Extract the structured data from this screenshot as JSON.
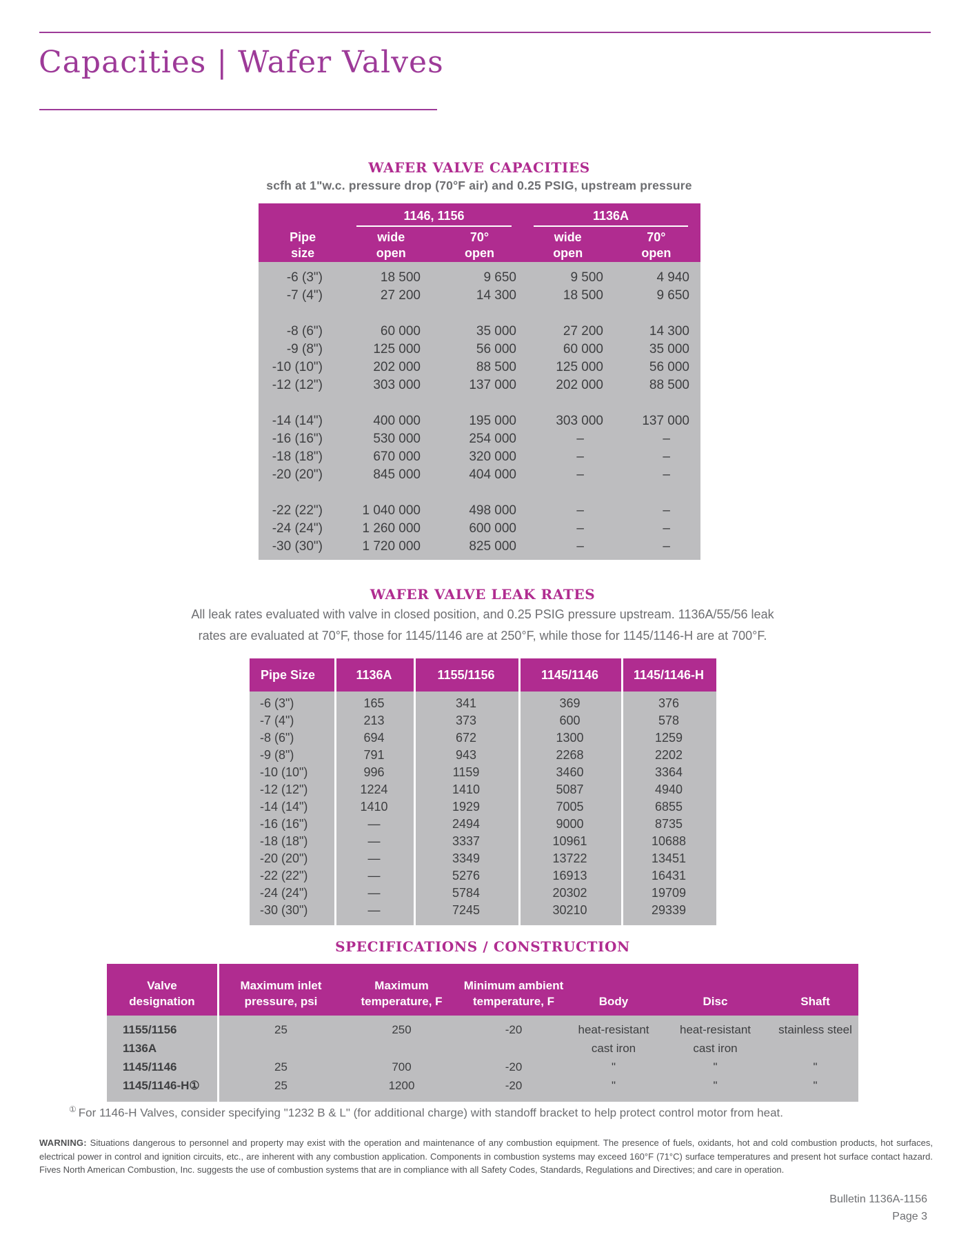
{
  "page": {
    "title": "Capacities | Wafer Valves",
    "footer_bulletin": "Bulletin 1136A-1156",
    "footer_page": "Page 3"
  },
  "colors": {
    "magenta": "#b02c90",
    "purple": "#9d3a98",
    "table_gray": "#bdbdbf"
  },
  "capacities": {
    "title": "WAFER VALVE CAPACITIES",
    "subtitle": "scfh at 1\"w.c. pressure drop (70°F air) and 0.25 PSIG, upstream pressure",
    "groups": [
      "1146, 1156",
      "1136A"
    ],
    "headers": [
      [
        "Pipe",
        "size"
      ],
      [
        "wide",
        "open"
      ],
      [
        "70°",
        "open"
      ],
      [
        "wide",
        "open"
      ],
      [
        "70°",
        "open"
      ]
    ],
    "row_groups": [
      [
        [
          "-6 (3\")",
          "18 500",
          "9 650",
          "9 500",
          "4 940"
        ],
        [
          "-7 (4\")",
          "27 200",
          "14 300",
          "18 500",
          "9 650"
        ]
      ],
      [
        [
          "-8 (6\")",
          "60 000",
          "35 000",
          "27 200",
          "14 300"
        ],
        [
          "-9 (8\")",
          "125 000",
          "56 000",
          "60 000",
          "35 000"
        ],
        [
          "-10 (10\")",
          "202 000",
          "88 500",
          "125 000",
          "56 000"
        ],
        [
          "-12 (12\")",
          "303 000",
          "137 000",
          "202 000",
          "88 500"
        ]
      ],
      [
        [
          "-14 (14\")",
          "400 000",
          "195 000",
          "303 000",
          "137 000"
        ],
        [
          "-16 (16\")",
          "530 000",
          "254 000",
          "–",
          "–"
        ],
        [
          "-18 (18\")",
          "670 000",
          "320 000",
          "–",
          "–"
        ],
        [
          "-20 (20\")",
          "845 000",
          "404 000",
          "–",
          "–"
        ]
      ],
      [
        [
          "-22 (22\")",
          "1 040 000",
          "498 000",
          "–",
          "–"
        ],
        [
          "-24 (24\")",
          "1 260 000",
          "600 000",
          "–",
          "–"
        ],
        [
          "-30 (30\")",
          "1 720 000",
          "825 000",
          "–",
          "–"
        ]
      ]
    ]
  },
  "leak_rates": {
    "title": "WAFER VALVE LEAK RATES",
    "description_line1": "All leak rates evaluated with valve in closed position, and 0.25 PSIG pressure upstream. 1136A/55/56 leak",
    "description_line2": "rates are evaluated at 70°F, those for 1145/1146 are at 250°F, while those for 1145/1146-H are at 700°F.",
    "headers": [
      "Pipe Size",
      "1136A",
      "1155/1156",
      "1145/1146",
      "1145/1146-H"
    ],
    "rows": [
      [
        "-6 (3\")",
        "165",
        "341",
        "369",
        "376"
      ],
      [
        "-7 (4\")",
        "213",
        "373",
        "600",
        "578"
      ],
      [
        "-8 (6\")",
        "694",
        "672",
        "1300",
        "1259"
      ],
      [
        "-9 (8\")",
        "791",
        "943",
        "2268",
        "2202"
      ],
      [
        "-10 (10\")",
        "996",
        "1159",
        "3460",
        "3364"
      ],
      [
        "-12 (12\")",
        "1224",
        "1410",
        "5087",
        "4940"
      ],
      [
        "-14 (14\")",
        "1410",
        "1929",
        "7005",
        "6855"
      ],
      [
        "-16 (16\")",
        "—",
        "2494",
        "9000",
        "8735"
      ],
      [
        "-18 (18\")",
        "—",
        "3337",
        "10961",
        "10688"
      ],
      [
        "-20 (20\")",
        "—",
        "3349",
        "13722",
        "13451"
      ],
      [
        "-22 (22\")",
        "—",
        "5276",
        "16913",
        "16431"
      ],
      [
        "-24 (24\")",
        "—",
        "5784",
        "20302",
        "19709"
      ],
      [
        "-30 (30\")",
        "—",
        "7245",
        "30210",
        "29339"
      ]
    ]
  },
  "specifications": {
    "title": "SPECIFICATIONS / CONSTRUCTION",
    "headers": [
      [
        "Valve",
        "designation"
      ],
      [
        "Maximum inlet",
        "pressure, psi"
      ],
      [
        "Maximum",
        "temperature, F"
      ],
      [
        "Minimum ambient",
        "temperature, F"
      ],
      [
        "Body"
      ],
      [
        "Disc"
      ],
      [
        "Shaft"
      ]
    ],
    "rows": [
      [
        "1155/1156",
        "25",
        "250",
        "-20",
        "heat-resistant",
        "heat-resistant",
        "stainless steel"
      ],
      [
        "1136A",
        "",
        "",
        "",
        "cast iron",
        "cast iron",
        ""
      ],
      [
        "1145/1146",
        "25",
        "700",
        "-20",
        "\"",
        "\"",
        "\""
      ],
      [
        "1145/1146-H①",
        "25",
        "1200",
        "-20",
        "\"",
        "\"",
        "\""
      ]
    ],
    "footnote_symbol": "①",
    "footnote_text": "For 1146-H Valves, consider specifying \"1232 B & L\" (for additional charge) with standoff bracket to help protect control motor from heat."
  },
  "warning": {
    "label": "WARNING:",
    "text": " Situations dangerous to personnel and property may exist with the operation and maintenance of any combustion equipment. The presence of fuels, oxidants, hot and cold combustion products, hot surfaces, electrical power in control and ignition circuits, etc., are inherent with any combustion application. Components in combustion systems may exceed 160°F (71°C) surface temperatures and present hot surface contact hazard. Fives North American Combustion, Inc. suggests the use of combustion systems that are in compliance with all Safety Codes, Standards, Regulations and Directives; and care in operation."
  }
}
